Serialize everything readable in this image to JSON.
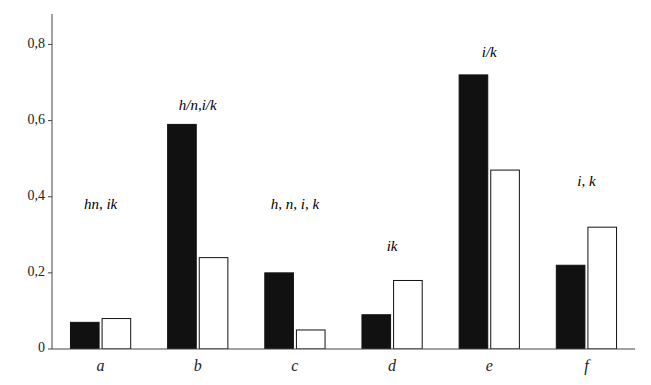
{
  "chart_data": {
    "type": "bar",
    "categories": [
      "a",
      "b",
      "c",
      "d",
      "e",
      "f"
    ],
    "series": [
      {
        "color": "#111111",
        "values": [
          0.07,
          0.59,
          0.2,
          0.09,
          0.72,
          0.22
        ]
      },
      {
        "color": "#ffffff",
        "values": [
          0.08,
          0.24,
          0.05,
          0.18,
          0.47,
          0.32
        ]
      }
    ],
    "annotations": [
      {
        "text": "hn, ik",
        "category": "a",
        "y": 0.36
      },
      {
        "text": "h/n,i/k",
        "category": "b",
        "y": 0.62
      },
      {
        "text": "h, n, i, k",
        "category": "c",
        "y": 0.36
      },
      {
        "text": "ik",
        "category": "d",
        "y": 0.25
      },
      {
        "text": "i/k",
        "category": "e",
        "y": 0.76
      },
      {
        "text": "i, k",
        "category": "f",
        "y": 0.42
      }
    ],
    "ylim": [
      0,
      0.88
    ],
    "yticks": [
      0,
      {
        "value": 0.2,
        "label": "0,2"
      },
      {
        "value": 0.4,
        "label": "0,4"
      },
      {
        "value": 0.6,
        "label": "0,6"
      },
      {
        "value": 0.8,
        "label": "0,8"
      }
    ],
    "grid": false
  }
}
